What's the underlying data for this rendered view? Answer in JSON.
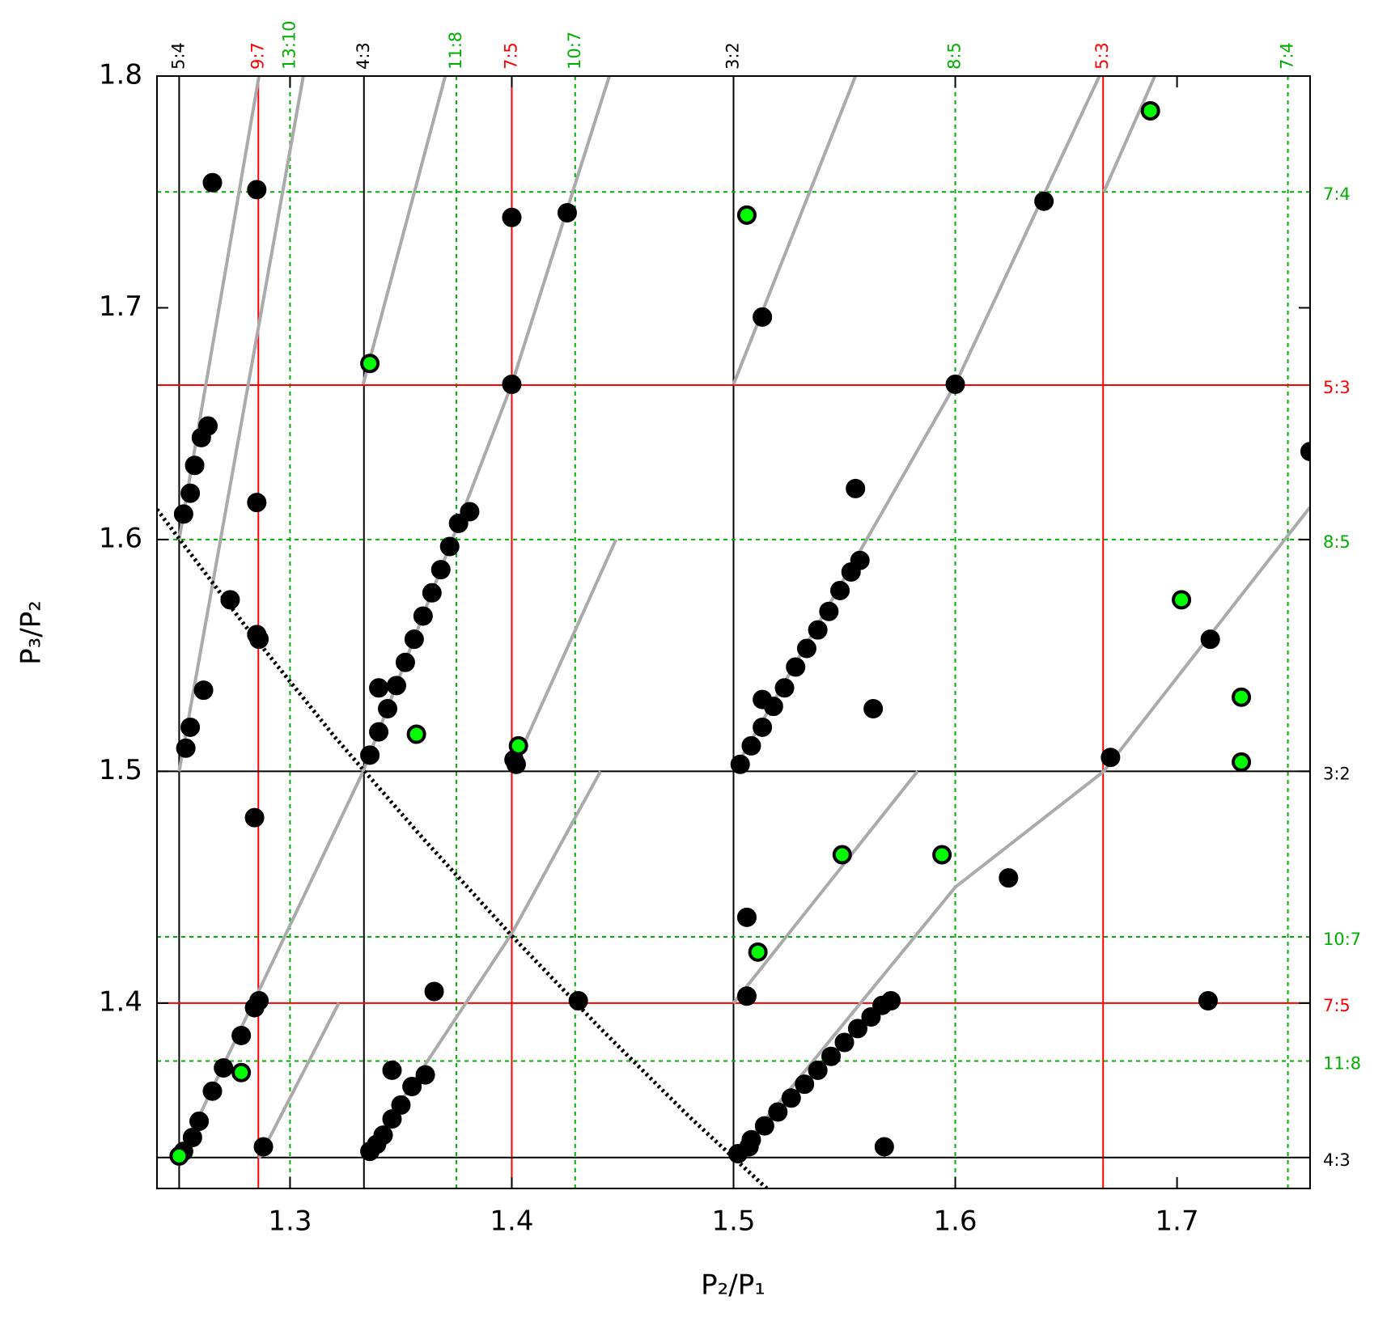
{
  "chart_data": {
    "type": "scatter",
    "x_label": "P₂/P₁",
    "y_label": "P₃/P₂",
    "xlim": [
      1.24,
      1.76
    ],
    "ylim": [
      1.32,
      1.8
    ],
    "xticks": [
      1.3,
      1.4,
      1.5,
      1.6,
      1.7
    ],
    "yticks": [
      1.4,
      1.5,
      1.6,
      1.7,
      1.8
    ],
    "line_colors": {
      "black": "#000000",
      "red": "#ff0000",
      "green": "#00b000"
    },
    "x_resonances": [
      {
        "label": "5:4",
        "value": 1.25,
        "style": "black"
      },
      {
        "label": "9:7",
        "value": 1.285714,
        "style": "red"
      },
      {
        "label": "13:10",
        "value": 1.3,
        "style": "green"
      },
      {
        "label": "4:3",
        "value": 1.333333,
        "style": "black"
      },
      {
        "label": "11:8",
        "value": 1.375,
        "style": "green"
      },
      {
        "label": "7:5",
        "value": 1.4,
        "style": "red"
      },
      {
        "label": "10:7",
        "value": 1.428571,
        "style": "green"
      },
      {
        "label": "3:2",
        "value": 1.5,
        "style": "black"
      },
      {
        "label": "8:5",
        "value": 1.6,
        "style": "green"
      },
      {
        "label": "5:3",
        "value": 1.666667,
        "style": "red"
      },
      {
        "label": "7:4",
        "value": 1.75,
        "style": "green"
      }
    ],
    "y_resonances": [
      {
        "label": "7:4",
        "value": 1.75,
        "style": "green"
      },
      {
        "label": "5:3",
        "value": 1.666667,
        "style": "red"
      },
      {
        "label": "8:5",
        "value": 1.6,
        "style": "green"
      },
      {
        "label": "3:2",
        "value": 1.5,
        "style": "black"
      },
      {
        "label": "10:7",
        "value": 1.428571,
        "style": "green"
      },
      {
        "label": "7:5",
        "value": 1.4,
        "style": "red"
      },
      {
        "label": "11:8",
        "value": 1.375,
        "style": "green"
      },
      {
        "label": "4:3",
        "value": 1.333333,
        "style": "black"
      }
    ],
    "curve_color": "#aaaaaa",
    "curves": [
      {
        "x": [
          1.25,
          1.286
        ],
        "y": [
          1.6,
          1.8
        ]
      },
      {
        "x": [
          1.25,
          1.306
        ],
        "y": [
          1.5,
          1.8
        ]
      },
      {
        "x": [
          1.333,
          1.37
        ],
        "y": [
          1.667,
          1.8
        ]
      },
      {
        "x": [
          1.25,
          1.333,
          1.4,
          1.444
        ],
        "y": [
          1.333,
          1.5,
          1.667,
          1.8
        ]
      },
      {
        "x": [
          1.286,
          1.322
        ],
        "y": [
          1.333,
          1.4
        ]
      },
      {
        "x": [
          1.333,
          1.4,
          1.44
        ],
        "y": [
          1.333,
          1.43,
          1.5
        ]
      },
      {
        "x": [
          1.4,
          1.447
        ],
        "y": [
          1.5,
          1.6
        ]
      },
      {
        "x": [
          1.5,
          1.555
        ],
        "y": [
          1.667,
          1.8
        ]
      },
      {
        "x": [
          1.5,
          1.56,
          1.6,
          1.665
        ],
        "y": [
          1.5,
          1.6,
          1.667,
          1.8
        ]
      },
      {
        "x": [
          1.5,
          1.583
        ],
        "y": [
          1.4,
          1.5
        ]
      },
      {
        "x": [
          1.5,
          1.6,
          1.667,
          1.76
        ],
        "y": [
          1.333,
          1.45,
          1.5,
          1.614
        ]
      },
      {
        "x": [
          1.667,
          1.69
        ],
        "y": [
          1.75,
          1.8
        ]
      }
    ],
    "dotted_curve": {
      "color": "#000000",
      "x": [
        1.24,
        1.28,
        1.32,
        1.36,
        1.4,
        1.44,
        1.48,
        1.515
      ],
      "y": [
        1.613,
        1.5625,
        1.515,
        1.471,
        1.429,
        1.389,
        1.351,
        1.32
      ]
    },
    "series": [
      {
        "color": "#000000",
        "edge": "#000000",
        "x": [
          1.265,
          1.285,
          1.4,
          1.425,
          1.513,
          1.64,
          1.4,
          1.6,
          1.285,
          1.555,
          1.76,
          1.273,
          1.285,
          1.286,
          1.261,
          1.255,
          1.253,
          1.252,
          1.255,
          1.257,
          1.26,
          1.263,
          1.34,
          1.715,
          1.563,
          1.513,
          1.401,
          1.402,
          1.67,
          1.284,
          1.624,
          1.506,
          1.506,
          1.43,
          1.714,
          1.365,
          1.346,
          1.568,
          1.288,
          1.252,
          1.256,
          1.259,
          1.265,
          1.27,
          1.278,
          1.284,
          1.286,
          1.336,
          1.34,
          1.344,
          1.348,
          1.352,
          1.356,
          1.36,
          1.364,
          1.368,
          1.372,
          1.376,
          1.381,
          1.336,
          1.339,
          1.342,
          1.346,
          1.35,
          1.355,
          1.361,
          1.503,
          1.508,
          1.513,
          1.518,
          1.523,
          1.528,
          1.533,
          1.538,
          1.543,
          1.548,
          1.553,
          1.557,
          1.502,
          1.508,
          1.514,
          1.52,
          1.526,
          1.532,
          1.538,
          1.544,
          1.55,
          1.556,
          1.562,
          1.567,
          1.571,
          1.507
        ],
        "y": [
          1.754,
          1.751,
          1.739,
          1.741,
          1.696,
          1.746,
          1.667,
          1.667,
          1.616,
          1.622,
          1.638,
          1.574,
          1.559,
          1.557,
          1.535,
          1.519,
          1.51,
          1.611,
          1.62,
          1.632,
          1.644,
          1.649,
          1.536,
          1.557,
          1.527,
          1.531,
          1.505,
          1.503,
          1.506,
          1.48,
          1.454,
          1.437,
          1.403,
          1.401,
          1.401,
          1.405,
          1.371,
          1.338,
          1.338,
          1.336,
          1.342,
          1.349,
          1.362,
          1.372,
          1.386,
          1.398,
          1.401,
          1.507,
          1.517,
          1.527,
          1.537,
          1.547,
          1.557,
          1.567,
          1.577,
          1.587,
          1.597,
          1.607,
          1.612,
          1.336,
          1.339,
          1.343,
          1.35,
          1.356,
          1.364,
          1.369,
          1.503,
          1.511,
          1.519,
          1.528,
          1.536,
          1.545,
          1.553,
          1.561,
          1.569,
          1.578,
          1.586,
          1.591,
          1.335,
          1.341,
          1.347,
          1.353,
          1.359,
          1.365,
          1.371,
          1.377,
          1.383,
          1.389,
          1.394,
          1.399,
          1.401,
          1.338
        ]
      },
      {
        "color": "#00ff00",
        "edge": "#000000",
        "x": [
          1.688,
          1.506,
          1.336,
          1.702,
          1.357,
          1.403,
          1.729,
          1.729,
          1.549,
          1.594,
          1.511,
          1.278,
          1.25
        ],
        "y": [
          1.785,
          1.74,
          1.676,
          1.574,
          1.516,
          1.511,
          1.532,
          1.504,
          1.464,
          1.464,
          1.422,
          1.37,
          1.334
        ]
      }
    ]
  }
}
